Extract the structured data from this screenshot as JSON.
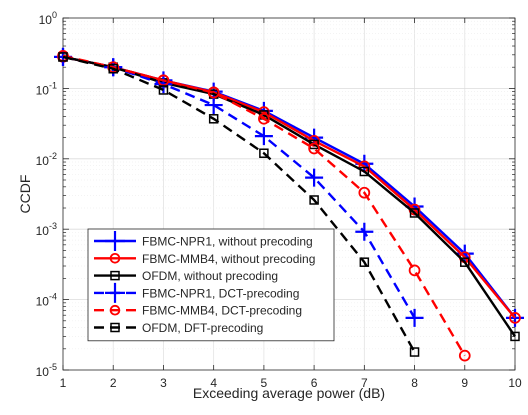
{
  "chart_data": {
    "type": "line",
    "title": "",
    "xlabel": "Exceeding average power (dB)",
    "ylabel": "CCDF",
    "xlim": [
      1,
      10
    ],
    "ylim_log10": [
      -5,
      0
    ],
    "yscale": "log",
    "x_ticks": [
      "1",
      "2",
      "3",
      "4",
      "5",
      "6",
      "7",
      "8",
      "9",
      "10"
    ],
    "y_ticks": [
      {
        "base": "10",
        "exp": "0"
      },
      {
        "base": "10",
        "exp": "-1"
      },
      {
        "base": "10",
        "exp": "-2"
      },
      {
        "base": "10",
        "exp": "-3"
      },
      {
        "base": "10",
        "exp": "-4"
      },
      {
        "base": "10",
        "exp": "-5"
      }
    ],
    "grid": true,
    "legend_position": "bottom-left",
    "series": [
      {
        "name": "FBMC-NPR1, without precoding",
        "color": "#0000ff",
        "dash": "solid",
        "marker": "plus",
        "x": [
          1,
          2,
          3,
          4,
          5,
          6,
          7,
          8,
          9,
          10
        ],
        "y": [
          0.28,
          0.2,
          0.13,
          0.09,
          0.048,
          0.02,
          0.0085,
          0.0021,
          0.00045,
          5.5e-05
        ]
      },
      {
        "name": "FBMC-MMB4, without precoding",
        "color": "#ff0000",
        "dash": "solid",
        "marker": "circle",
        "x": [
          1,
          2,
          3,
          4,
          5,
          6,
          7,
          8,
          9,
          10
        ],
        "y": [
          0.28,
          0.2,
          0.13,
          0.088,
          0.046,
          0.018,
          0.0078,
          0.0019,
          0.0004,
          5.5e-05
        ]
      },
      {
        "name": "OFDM, without precoding",
        "color": "#000000",
        "dash": "solid",
        "marker": "square",
        "x": [
          1,
          2,
          3,
          4,
          5,
          6,
          7,
          8,
          9,
          10
        ],
        "y": [
          0.28,
          0.2,
          0.12,
          0.083,
          0.042,
          0.016,
          0.0066,
          0.0017,
          0.00034,
          3e-05
        ]
      },
      {
        "name": "FBMC-NPR1, DCT-precoding",
        "color": "#0000ff",
        "dash": "dashed",
        "marker": "plus",
        "x": [
          1,
          2,
          3,
          4,
          5,
          6,
          7,
          8
        ],
        "y": [
          0.28,
          0.2,
          0.115,
          0.058,
          0.021,
          0.0054,
          0.00092,
          5.5e-05
        ]
      },
      {
        "name": "FBMC-MMB4, DCT-precoding",
        "color": "#ff0000",
        "dash": "dashed",
        "marker": "circle",
        "x": [
          1,
          2,
          3,
          4,
          5,
          6,
          7,
          8,
          9
        ],
        "y": [
          0.29,
          0.2,
          0.13,
          0.087,
          0.037,
          0.014,
          0.0033,
          0.00026,
          1.6e-05
        ]
      },
      {
        "name": "OFDM, DFT-precoding",
        "color": "#000000",
        "dash": "dashed",
        "marker": "square",
        "x": [
          1,
          2,
          3,
          4,
          5,
          6,
          7,
          8
        ],
        "y": [
          0.28,
          0.19,
          0.095,
          0.037,
          0.012,
          0.0026,
          0.00034,
          1.8e-05
        ]
      }
    ]
  }
}
